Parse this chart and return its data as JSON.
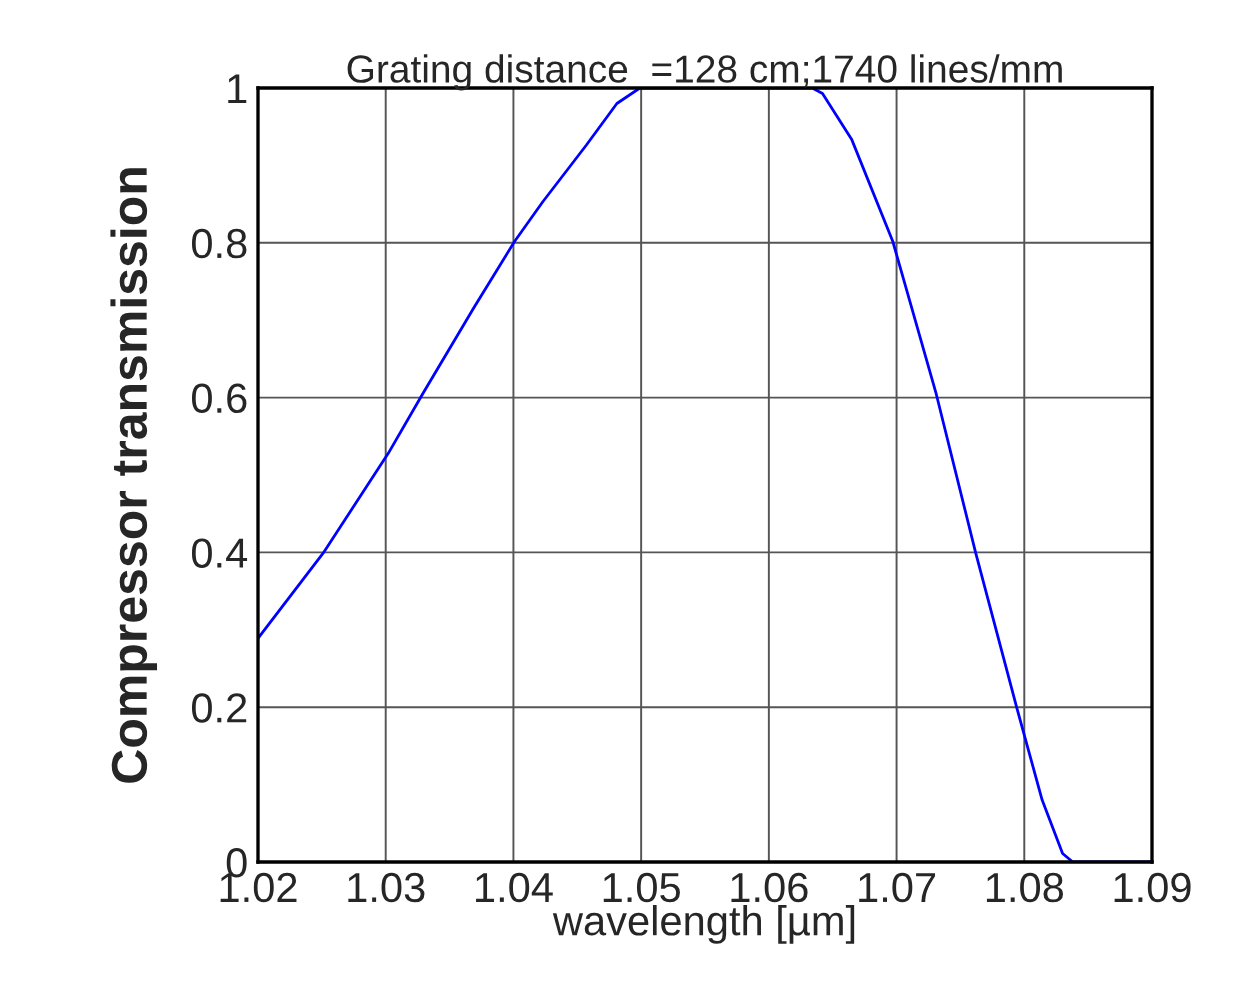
{
  "chart_data": {
    "type": "line",
    "title": "Grating distance  =128 cm;1740 lines/mm",
    "xlabel": "wavelength [µm]",
    "ylabel": "Compressor transmission",
    "series": [
      {
        "color": "#0000ff",
        "x": [
          1.02,
          1.0251,
          1.0302,
          1.0329,
          1.0369,
          1.0401,
          1.0423,
          1.0457,
          1.0481,
          1.0499,
          1.0634,
          1.0642,
          1.0665,
          1.0697,
          1.0731,
          1.0762,
          1.0794,
          1.0814,
          1.083,
          1.0838,
          1.09
        ],
        "values": [
          0.289,
          0.399,
          0.528,
          0.605,
          0.716,
          0.802,
          0.853,
          0.926,
          0.98,
          1,
          1,
          0.993,
          0.933,
          0.802,
          0.605,
          0.399,
          0.2,
          0.08,
          0.011,
          0,
          0
        ]
      }
    ],
    "xlim": [
      1.02,
      1.09
    ],
    "ylim": [
      0,
      1
    ],
    "xticks": [
      1.02,
      1.03,
      1.04,
      1.05,
      1.06,
      1.07,
      1.08,
      1.09
    ],
    "yticks": [
      0,
      0.2,
      0.4,
      0.6,
      0.8,
      1
    ],
    "grid": true,
    "marker": "none",
    "line_style": "solid"
  }
}
